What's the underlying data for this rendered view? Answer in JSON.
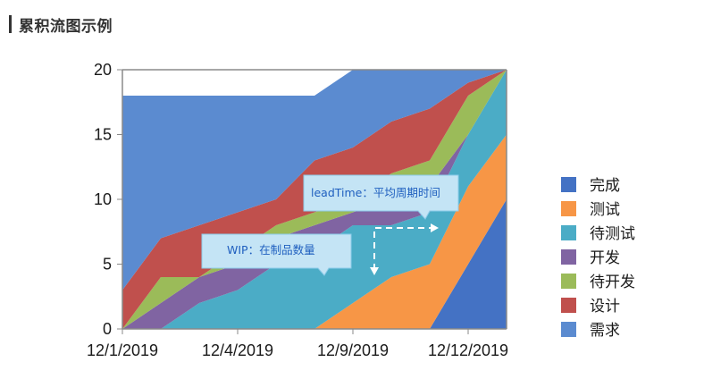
{
  "header": {
    "title": "累积流图示例"
  },
  "chart_data": {
    "type": "area",
    "stacked": true,
    "title": "",
    "xlabel": "",
    "ylabel": "",
    "ylim": [
      0,
      20
    ],
    "yticks": [
      0,
      5,
      10,
      15,
      20
    ],
    "x_ticks": [
      "12/1/2019",
      "12/4/2019",
      "12/9/2019",
      "12/12/2019"
    ],
    "x_index": [
      0,
      1,
      2,
      3,
      4,
      5,
      6,
      7,
      8,
      9,
      10
    ],
    "grid": false,
    "legend_position": "right",
    "series": [
      {
        "name": "完成",
        "color": "#4472c4",
        "values": [
          0,
          0,
          0,
          0,
          0,
          0,
          0,
          0,
          0,
          5,
          10
        ]
      },
      {
        "name": "测试",
        "color": "#f79646",
        "values": [
          0,
          0,
          0,
          0,
          0,
          0,
          2,
          4,
          5,
          6,
          5
        ]
      },
      {
        "name": "待测试",
        "color": "#4bacc6",
        "values": [
          0,
          0,
          2,
          3,
          5,
          6,
          6,
          4,
          4,
          4,
          5
        ]
      },
      {
        "name": "开发",
        "color": "#8064a2",
        "values": [
          0,
          2,
          2,
          2,
          2,
          2,
          1,
          2,
          2,
          0,
          0
        ]
      },
      {
        "name": "待开发",
        "color": "#9bbb59",
        "values": [
          0,
          2,
          0,
          1,
          1,
          1,
          1,
          2,
          2,
          3,
          0
        ]
      },
      {
        "name": "设计",
        "color": "#c0504d",
        "values": [
          3,
          3,
          4,
          3,
          2,
          4,
          4,
          4,
          4,
          1,
          0
        ]
      },
      {
        "name": "需求",
        "color": "#5b8bd0",
        "values": [
          15,
          11,
          10,
          9,
          8,
          5,
          6,
          4,
          3,
          1,
          0
        ]
      }
    ],
    "annotations": [
      {
        "id": "leadtime",
        "text": "leadTime：平均周期时间"
      },
      {
        "id": "wip",
        "text": "WIP：在制品数量"
      }
    ]
  }
}
